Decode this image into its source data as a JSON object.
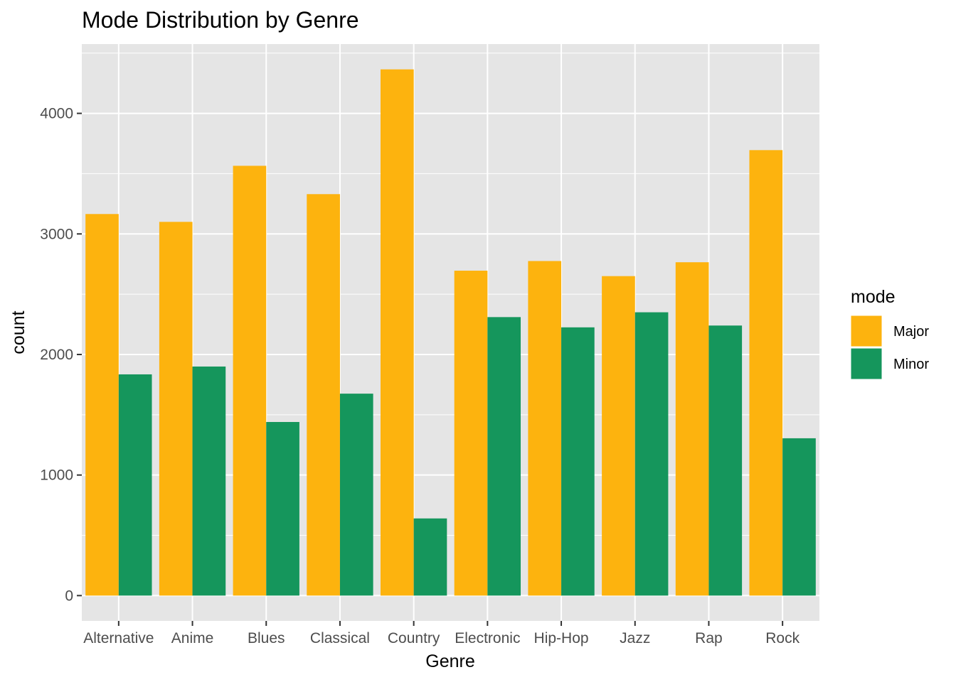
{
  "chart_data": {
    "type": "bar",
    "title": "Mode Distribution by Genre",
    "xlabel": "Genre",
    "ylabel": "count",
    "categories": [
      "Alternative",
      "Anime",
      "Blues",
      "Classical",
      "Country",
      "Electronic",
      "Hip-Hop",
      "Jazz",
      "Rap",
      "Rock"
    ],
    "series": [
      {
        "name": "Major",
        "color": "#FDB30E",
        "values": [
          3165,
          3100,
          3565,
          3330,
          4365,
          2695,
          2775,
          2650,
          2765,
          3695
        ]
      },
      {
        "name": "Minor",
        "color": "#15965C",
        "values": [
          1835,
          1900,
          1440,
          1675,
          640,
          2310,
          2225,
          2350,
          2240,
          1305
        ]
      }
    ],
    "yticks": [
      0,
      1000,
      2000,
      3000,
      4000
    ],
    "ylim": [
      -210,
      4575
    ],
    "grid": true,
    "legend": {
      "title": "mode",
      "position": "right"
    },
    "panel_background": "#E5E5E5",
    "grid_color": "#FFFFFF"
  }
}
